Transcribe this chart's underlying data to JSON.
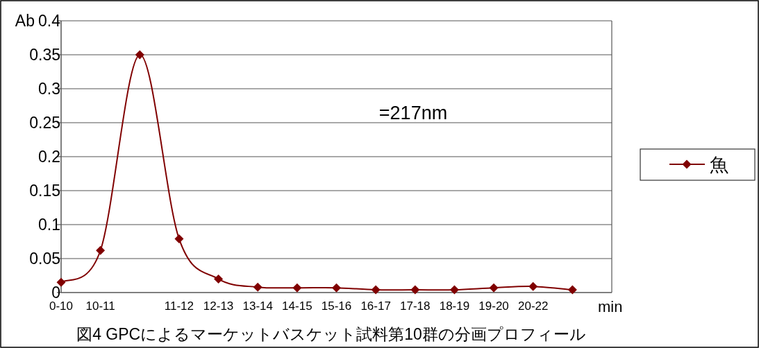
{
  "chart_data": {
    "type": "line",
    "title": "図4  GPCによるマーケットバスケット試料第10群の分画プロフィール",
    "xlabel": "min",
    "ylabel": "Ab",
    "categories": [
      "0-10",
      "10-11",
      null,
      "11-12",
      "12-13",
      "13-14",
      "14-15",
      "15-16",
      "16-17",
      "17-18",
      "18-19",
      "19-20",
      "20-22",
      null
    ],
    "series": [
      {
        "name": "魚",
        "color": "#800000",
        "values": [
          0.015,
          0.062,
          0.35,
          0.079,
          0.02,
          0.008,
          0.007,
          0.007,
          0.004,
          0.004,
          0.004,
          0.007,
          0.009,
          0.004
        ]
      }
    ],
    "ylim": [
      0,
      0.4
    ],
    "yticks": [
      0,
      0.05,
      0.1,
      0.15,
      0.2,
      0.25,
      0.3,
      0.35,
      0.4
    ],
    "annotations": [
      "=217nm"
    ],
    "grid": "y",
    "legend": "right",
    "marker": "diamond",
    "line_style": "solid"
  }
}
